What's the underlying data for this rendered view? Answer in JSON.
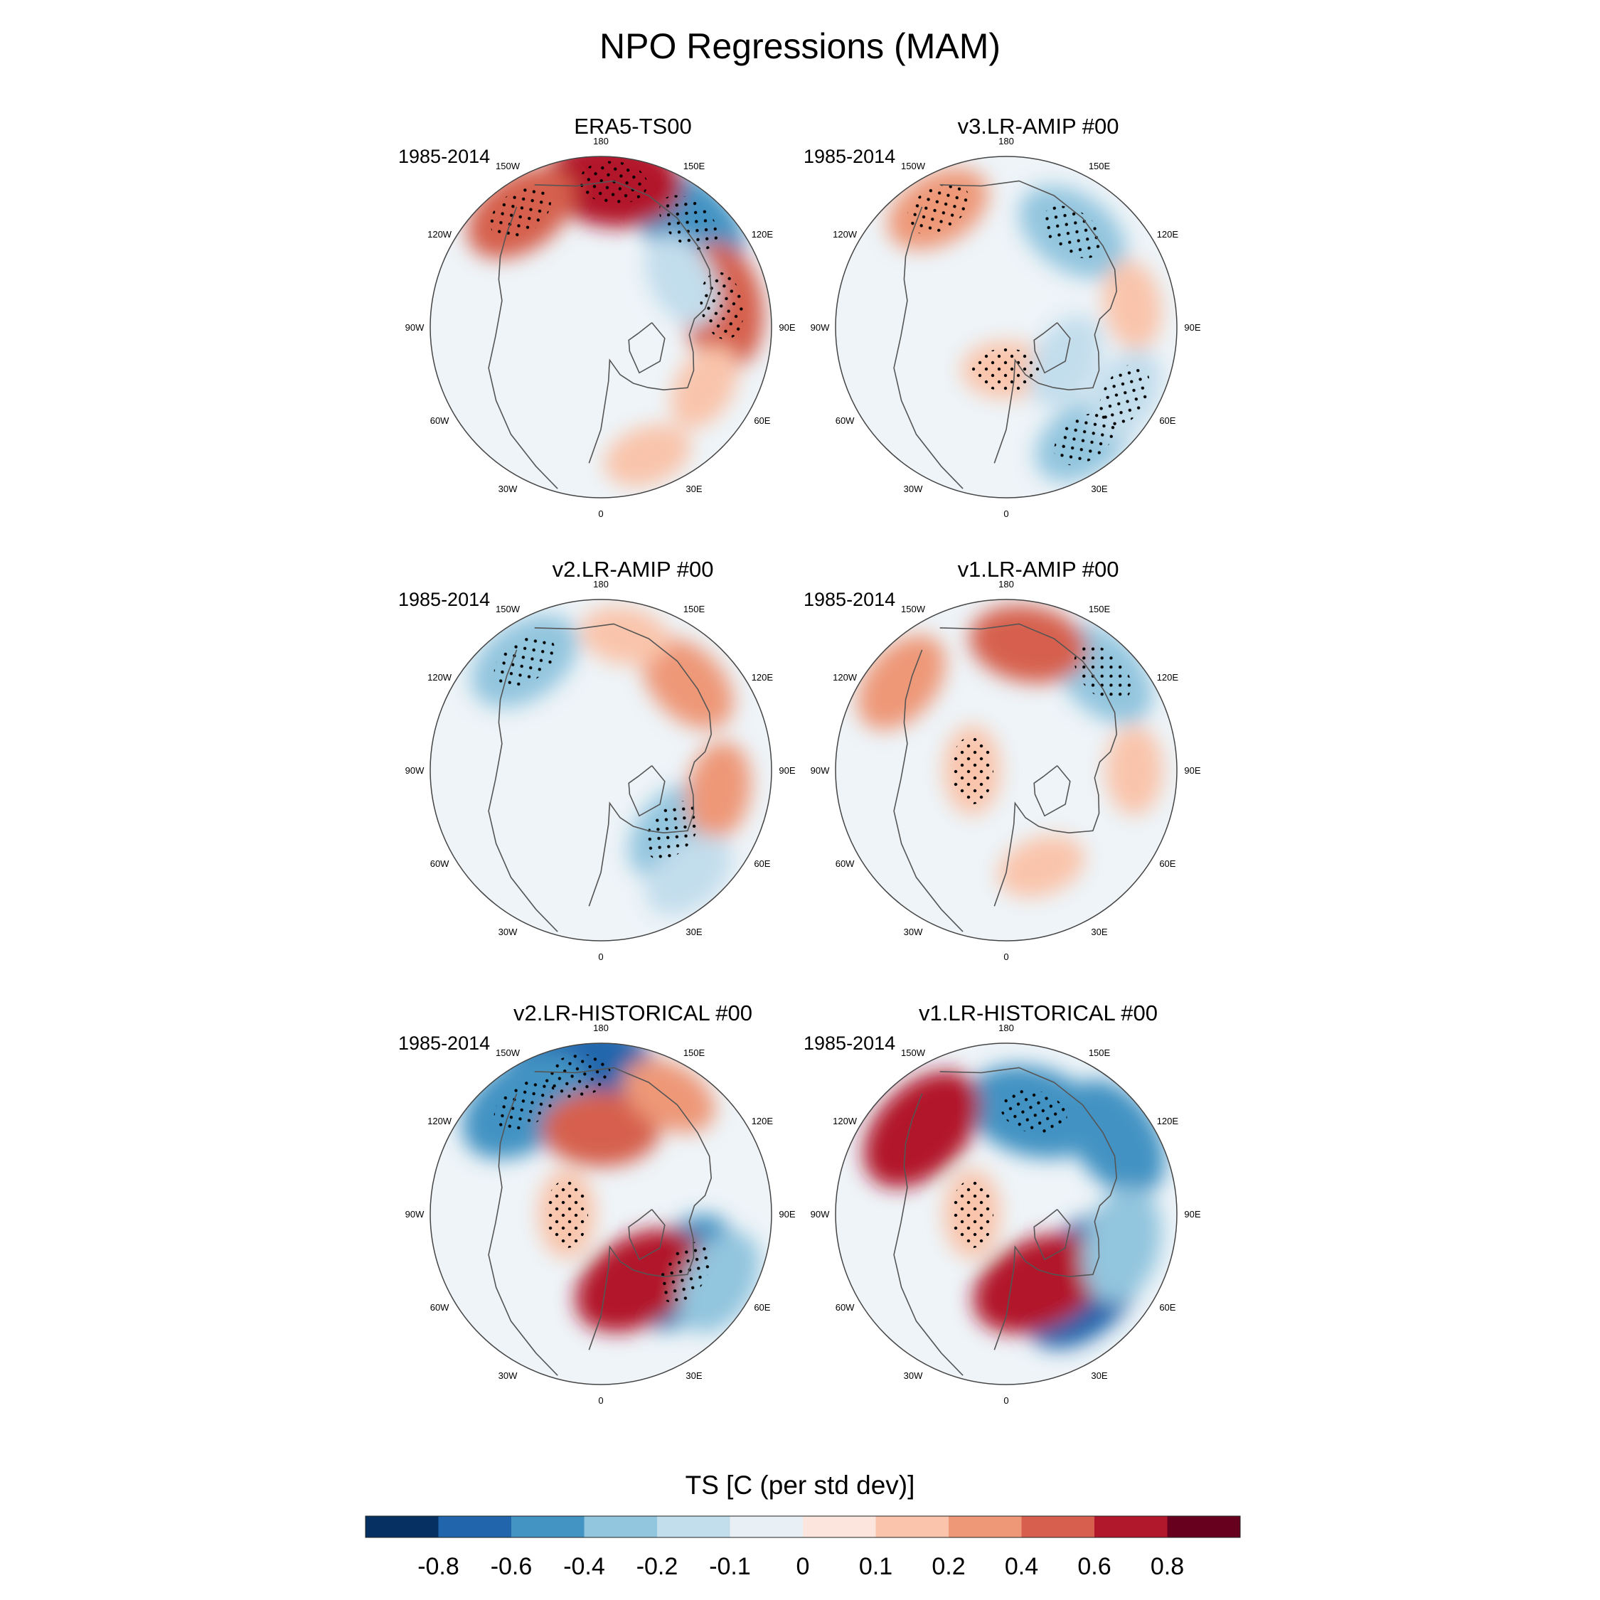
{
  "figure": {
    "title": "NPO Regressions (MAM)",
    "colorbar_title": "TS [C (per std dev)]"
  },
  "chart_data": {
    "type": "heatmap",
    "projection": "north-polar-stereographic",
    "period": "1985-2014",
    "longitude_labels": [
      "180",
      "150E",
      "120E",
      "90E",
      "60E",
      "30E",
      "0",
      "30W",
      "60W",
      "90W",
      "120W",
      "150W"
    ],
    "colorbar": {
      "tick_labels": [
        "-0.8",
        "-0.6",
        "-0.4",
        "-0.2",
        "-0.1",
        "0",
        "0.1",
        "0.2",
        "0.4",
        "0.6",
        "0.8"
      ],
      "levels": [
        -0.8,
        -0.6,
        -0.4,
        -0.2,
        -0.1,
        0,
        0.1,
        0.2,
        0.4,
        0.6,
        0.8
      ],
      "colors": [
        "#053061",
        "#2166ac",
        "#4393c3",
        "#92c5de",
        "#c2ddec",
        "#e8f0f6",
        "#fbe5dc",
        "#f9c4ab",
        "#ee9878",
        "#d6604d",
        "#b2182b",
        "#67001f"
      ]
    },
    "panels": [
      {
        "title": "ERA5-TS00",
        "period": "1985-2014",
        "regions": [
          {
            "lon": 140,
            "r": 0.8,
            "value": -0.5,
            "stippled": true
          },
          {
            "lon": 175,
            "r": 0.85,
            "value": 0.6,
            "stippled": true
          },
          {
            "lon": 215,
            "r": 0.82,
            "value": 0.4,
            "stippled": true
          },
          {
            "lon": 100,
            "r": 0.72,
            "value": 0.5,
            "stippled": true
          },
          {
            "lon": 60,
            "r": 0.7,
            "value": 0.1,
            "stippled": false
          },
          {
            "lon": 20,
            "r": 0.8,
            "value": 0.1,
            "stippled": false
          },
          {
            "lon": 120,
            "r": 0.55,
            "value": -0.2,
            "stippled": false
          }
        ]
      },
      {
        "title": "v3.LR-AMIP  #00",
        "period": "1985-2014",
        "regions": [
          {
            "lon": 145,
            "r": 0.68,
            "value": -0.4,
            "stippled": true
          },
          {
            "lon": 210,
            "r": 0.8,
            "value": 0.3,
            "stippled": true
          },
          {
            "lon": 0,
            "r": 0.25,
            "value": 0.1,
            "stippled": true
          },
          {
            "lon": 100,
            "r": 0.75,
            "value": 0.1,
            "stippled": false
          },
          {
            "lon": 60,
            "r": 0.4,
            "value": -0.2,
            "stippled": false
          },
          {
            "lon": 35,
            "r": 0.8,
            "value": -0.3,
            "stippled": true
          },
          {
            "lon": 60,
            "r": 0.8,
            "value": -0.2,
            "stippled": true
          }
        ]
      },
      {
        "title": "v2.LR-AMIP  #00",
        "period": "1985-2014",
        "regions": [
          {
            "lon": 215,
            "r": 0.78,
            "value": -0.4,
            "stippled": true
          },
          {
            "lon": 135,
            "r": 0.72,
            "value": 0.3,
            "stippled": false
          },
          {
            "lon": 170,
            "r": 0.8,
            "value": 0.1,
            "stippled": false
          },
          {
            "lon": 50,
            "r": 0.55,
            "value": -0.3,
            "stippled": true
          },
          {
            "lon": 80,
            "r": 0.7,
            "value": 0.2,
            "stippled": false
          },
          {
            "lon": 40,
            "r": 0.8,
            "value": -0.2,
            "stippled": false
          }
        ]
      },
      {
        "title": "v1.LR-AMIP  #00",
        "period": "1985-2014",
        "regions": [
          {
            "lon": 135,
            "r": 0.8,
            "value": -0.4,
            "stippled": true
          },
          {
            "lon": 170,
            "r": 0.75,
            "value": 0.4,
            "stippled": false
          },
          {
            "lon": 230,
            "r": 0.8,
            "value": 0.3,
            "stippled": false
          },
          {
            "lon": 270,
            "r": 0.2,
            "value": 0.1,
            "stippled": true
          },
          {
            "lon": 90,
            "r": 0.75,
            "value": 0.1,
            "stippled": false
          },
          {
            "lon": 20,
            "r": 0.6,
            "value": 0.1,
            "stippled": false
          }
        ]
      },
      {
        "title": "v2.LR-HISTORICAL  #00",
        "period": "1985-2014",
        "regions": [
          {
            "lon": 190,
            "r": 0.82,
            "value": -0.8,
            "stippled": true
          },
          {
            "lon": 215,
            "r": 0.78,
            "value": -0.6,
            "stippled": true
          },
          {
            "lon": 180,
            "r": 0.5,
            "value": 0.4,
            "stippled": false
          },
          {
            "lon": 150,
            "r": 0.8,
            "value": 0.2,
            "stippled": false
          },
          {
            "lon": 270,
            "r": 0.2,
            "value": 0.1,
            "stippled": true
          },
          {
            "lon": 55,
            "r": 0.6,
            "value": -0.5,
            "stippled": true
          },
          {
            "lon": 30,
            "r": 0.45,
            "value": 0.6,
            "stippled": false
          },
          {
            "lon": 60,
            "r": 0.8,
            "value": -0.3,
            "stippled": false
          }
        ]
      },
      {
        "title": "v1.LR-HISTORICAL  #00",
        "period": "1985-2014",
        "regions": [
          {
            "lon": 165,
            "r": 0.62,
            "value": -0.6,
            "stippled": true
          },
          {
            "lon": 125,
            "r": 0.78,
            "value": -0.5,
            "stippled": false
          },
          {
            "lon": 225,
            "r": 0.7,
            "value": 0.6,
            "stippled": false
          },
          {
            "lon": 270,
            "r": 0.2,
            "value": 0.1,
            "stippled": true
          },
          {
            "lon": 50,
            "r": 0.6,
            "value": -0.8,
            "stippled": false
          },
          {
            "lon": 25,
            "r": 0.45,
            "value": 0.6,
            "stippled": false
          },
          {
            "lon": 75,
            "r": 0.7,
            "value": -0.4,
            "stippled": false
          }
        ]
      }
    ]
  }
}
